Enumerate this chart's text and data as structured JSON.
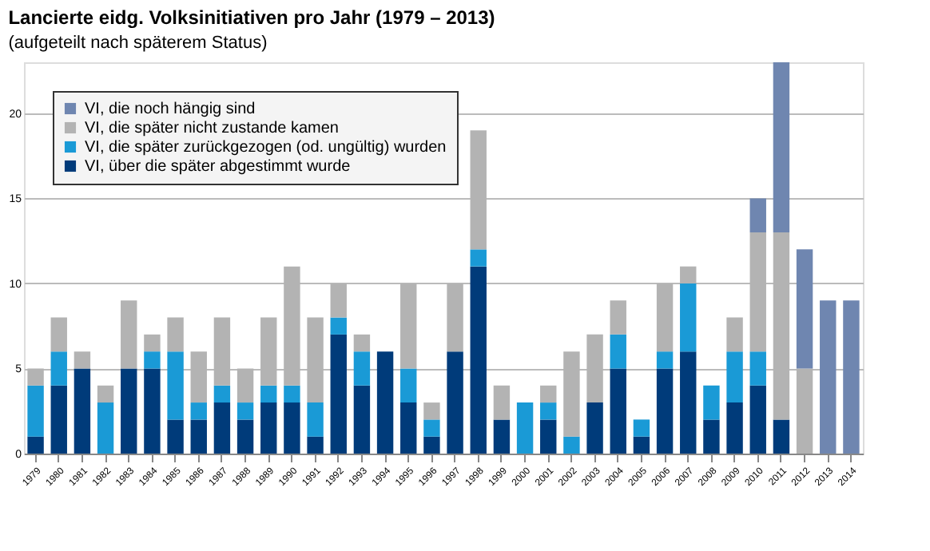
{
  "chart_data": {
    "type": "bar",
    "title": "Lancierte eidg. Volksinitiativen pro Jahr (1979 – 2013)",
    "subtitle": "(aufgeteilt nach späterem Status)",
    "categories": [
      "1979",
      "1980",
      "1981",
      "1982",
      "1983",
      "1984",
      "1985",
      "1986",
      "1987",
      "1988",
      "1989",
      "1990",
      "1991",
      "1992",
      "1993",
      "1994",
      "1995",
      "1996",
      "1997",
      "1998",
      "1999",
      "2000",
      "2001",
      "2002",
      "2003",
      "2004",
      "2005",
      "2006",
      "2007",
      "2008",
      "2009",
      "2010",
      "2011",
      "2012",
      "2013",
      "2014"
    ],
    "stacked": true,
    "series": [
      {
        "name": "VI, über die später abgestimmt wurde",
        "color": "#003b7a",
        "values": [
          1,
          4,
          5,
          0,
          5,
          5,
          2,
          2,
          3,
          2,
          3,
          3,
          1,
          7,
          4,
          6,
          3,
          1,
          6,
          11,
          2,
          0,
          2,
          0,
          3,
          5,
          1,
          5,
          6,
          2,
          3,
          4,
          2,
          0,
          0,
          0
        ]
      },
      {
        "name": "VI, die später zurückgezogen (od. ungültig) wurden",
        "color": "#1a9ad6",
        "values": [
          3,
          2,
          0,
          3,
          0,
          1,
          4,
          1,
          1,
          1,
          1,
          1,
          2,
          1,
          2,
          0,
          2,
          1,
          0,
          1,
          0,
          3,
          1,
          1,
          0,
          2,
          1,
          1,
          4,
          2,
          3,
          2,
          0,
          0,
          0,
          0
        ]
      },
      {
        "name": "VI, die später nicht zustande kamen",
        "color": "#b3b3b3",
        "values": [
          1,
          2,
          1,
          1,
          4,
          1,
          2,
          3,
          4,
          2,
          4,
          7,
          5,
          2,
          1,
          0,
          5,
          1,
          4,
          7,
          2,
          0,
          1,
          5,
          4,
          2,
          0,
          4,
          1,
          0,
          2,
          7,
          11,
          5,
          0,
          0
        ]
      },
      {
        "name": "VI, die noch hängig sind",
        "color": "#6f86b0",
        "values": [
          0,
          0,
          0,
          0,
          0,
          0,
          0,
          0,
          0,
          0,
          0,
          0,
          0,
          0,
          0,
          0,
          0,
          0,
          0,
          0,
          0,
          0,
          0,
          0,
          0,
          0,
          0,
          0,
          0,
          0,
          0,
          2,
          10,
          7,
          9,
          9
        ]
      }
    ],
    "ylim": [
      0,
      23
    ],
    "yticks": [
      0,
      5,
      10,
      15,
      20
    ],
    "grid": "y",
    "legend": "top left"
  }
}
